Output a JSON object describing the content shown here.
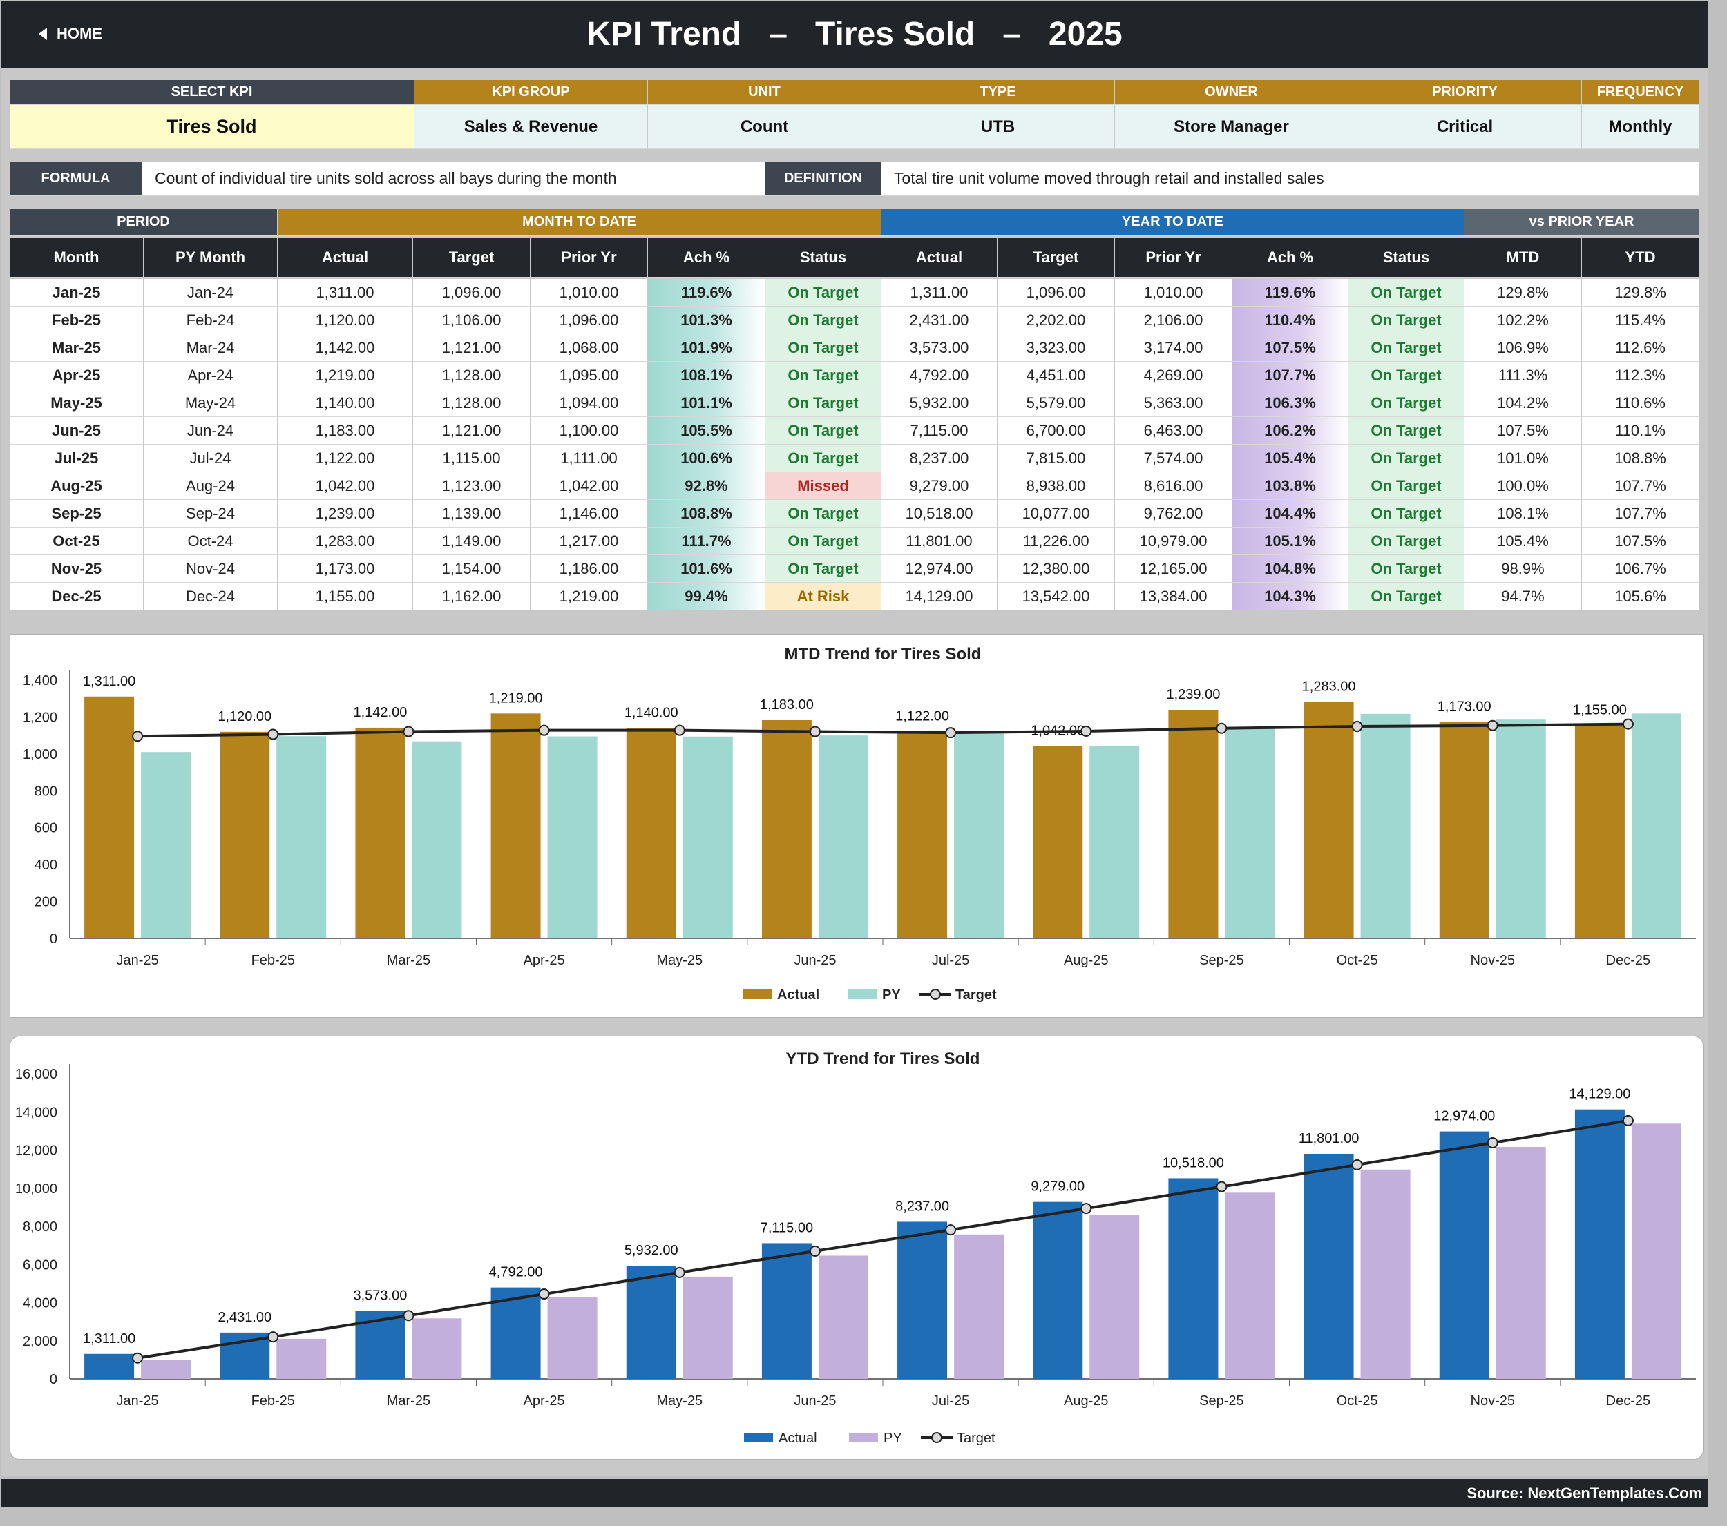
{
  "header": {
    "home_label": "HOME",
    "title": "KPI Trend   –   Tires Sold   –   2025"
  },
  "kpi_info": {
    "headers": [
      "SELECT KPI",
      "KPI GROUP",
      "UNIT",
      "TYPE",
      "OWNER",
      "PRIORITY",
      "FREQUENCY"
    ],
    "values": [
      "Tires Sold",
      "Sales & Revenue",
      "Count",
      "UTB",
      "Store Manager",
      "Critical",
      "Monthly"
    ]
  },
  "formula": {
    "label": "FORMULA",
    "text": "Count of individual tire units sold across all bays during the month",
    "definition_label": "DEFINITION",
    "definition_text": "Total tire unit volume moved through retail and installed sales"
  },
  "table": {
    "group_headers": [
      "PERIOD",
      "MONTH TO DATE",
      "YEAR TO DATE",
      "vs PRIOR YEAR"
    ],
    "columns": [
      "Month",
      "PY Month",
      "Actual",
      "Target",
      "Prior Yr",
      "Ach %",
      "Status",
      "Actual",
      "Target",
      "Prior Yr",
      "Ach %",
      "Status",
      "MTD",
      "YTD"
    ],
    "rows": [
      [
        "Jan-25",
        "Jan-24",
        "1,311.00",
        "1,096.00",
        "1,010.00",
        "119.6%",
        "On Target",
        "1,311.00",
        "1,096.00",
        "1,010.00",
        "119.6%",
        "On Target",
        "129.8%",
        "129.8%"
      ],
      [
        "Feb-25",
        "Feb-24",
        "1,120.00",
        "1,106.00",
        "1,096.00",
        "101.3%",
        "On Target",
        "2,431.00",
        "2,202.00",
        "2,106.00",
        "110.4%",
        "On Target",
        "102.2%",
        "115.4%"
      ],
      [
        "Mar-25",
        "Mar-24",
        "1,142.00",
        "1,121.00",
        "1,068.00",
        "101.9%",
        "On Target",
        "3,573.00",
        "3,323.00",
        "3,174.00",
        "107.5%",
        "On Target",
        "106.9%",
        "112.6%"
      ],
      [
        "Apr-25",
        "Apr-24",
        "1,219.00",
        "1,128.00",
        "1,095.00",
        "108.1%",
        "On Target",
        "4,792.00",
        "4,451.00",
        "4,269.00",
        "107.7%",
        "On Target",
        "111.3%",
        "112.3%"
      ],
      [
        "May-25",
        "May-24",
        "1,140.00",
        "1,128.00",
        "1,094.00",
        "101.1%",
        "On Target",
        "5,932.00",
        "5,579.00",
        "5,363.00",
        "106.3%",
        "On Target",
        "104.2%",
        "110.6%"
      ],
      [
        "Jun-25",
        "Jun-24",
        "1,183.00",
        "1,121.00",
        "1,100.00",
        "105.5%",
        "On Target",
        "7,115.00",
        "6,700.00",
        "6,463.00",
        "106.2%",
        "On Target",
        "107.5%",
        "110.1%"
      ],
      [
        "Jul-25",
        "Jul-24",
        "1,122.00",
        "1,115.00",
        "1,111.00",
        "100.6%",
        "On Target",
        "8,237.00",
        "7,815.00",
        "7,574.00",
        "105.4%",
        "On Target",
        "101.0%",
        "108.8%"
      ],
      [
        "Aug-25",
        "Aug-24",
        "1,042.00",
        "1,123.00",
        "1,042.00",
        "92.8%",
        "Missed",
        "9,279.00",
        "8,938.00",
        "8,616.00",
        "103.8%",
        "On Target",
        "100.0%",
        "107.7%"
      ],
      [
        "Sep-25",
        "Sep-24",
        "1,239.00",
        "1,139.00",
        "1,146.00",
        "108.8%",
        "On Target",
        "10,518.00",
        "10,077.00",
        "9,762.00",
        "104.4%",
        "On Target",
        "108.1%",
        "107.7%"
      ],
      [
        "Oct-25",
        "Oct-24",
        "1,283.00",
        "1,149.00",
        "1,217.00",
        "111.7%",
        "On Target",
        "11,801.00",
        "11,226.00",
        "10,979.00",
        "105.1%",
        "On Target",
        "105.4%",
        "107.5%"
      ],
      [
        "Nov-25",
        "Nov-24",
        "1,173.00",
        "1,154.00",
        "1,186.00",
        "101.6%",
        "On Target",
        "12,974.00",
        "12,380.00",
        "12,165.00",
        "104.8%",
        "On Target",
        "98.9%",
        "106.7%"
      ],
      [
        "Dec-25",
        "Dec-24",
        "1,155.00",
        "1,162.00",
        "1,219.00",
        "99.4%",
        "At Risk",
        "14,129.00",
        "13,542.00",
        "13,384.00",
        "104.3%",
        "On Target",
        "94.7%",
        "105.6%"
      ]
    ]
  },
  "chart_data": [
    {
      "type": "bar",
      "title": "MTD Trend for Tires Sold",
      "categories": [
        "Jan-25",
        "Feb-25",
        "Mar-25",
        "Apr-25",
        "May-25",
        "Jun-25",
        "Jul-25",
        "Aug-25",
        "Sep-25",
        "Oct-25",
        "Nov-25",
        "Dec-25"
      ],
      "series": [
        {
          "name": "Actual",
          "kind": "bar",
          "color": "#b5831b",
          "values": [
            1311,
            1120,
            1142,
            1219,
            1140,
            1183,
            1122,
            1042,
            1239,
            1283,
            1173,
            1155
          ]
        },
        {
          "name": "PY",
          "kind": "bar",
          "color": "#9fd8d1",
          "values": [
            1010,
            1096,
            1068,
            1095,
            1094,
            1100,
            1111,
            1042,
            1146,
            1217,
            1186,
            1219
          ]
        },
        {
          "name": "Target",
          "kind": "line",
          "color": "#222222",
          "values": [
            1096,
            1106,
            1121,
            1128,
            1128,
            1121,
            1115,
            1123,
            1139,
            1149,
            1154,
            1162
          ]
        }
      ],
      "data_labels": [
        "1,311.00",
        "1,120.00",
        "1,142.00",
        "1,219.00",
        "1,140.00",
        "1,183.00",
        "1,122.00",
        "1,042.00",
        "1,239.00",
        "1,283.00",
        "1,173.00",
        "1,155.00"
      ],
      "y_ticks": [
        "0",
        "200",
        "400",
        "600",
        "800",
        "1,000",
        "1,200",
        "1,400"
      ],
      "ylim": [
        0,
        1400
      ],
      "legend_position": "bottom"
    },
    {
      "type": "bar",
      "title": "YTD Trend for Tires Sold",
      "categories": [
        "Jan-25",
        "Feb-25",
        "Mar-25",
        "Apr-25",
        "May-25",
        "Jun-25",
        "Jul-25",
        "Aug-25",
        "Sep-25",
        "Oct-25",
        "Nov-25",
        "Dec-25"
      ],
      "series": [
        {
          "name": "Actual",
          "kind": "bar",
          "color": "#1f6db5",
          "values": [
            1311,
            2431,
            3573,
            4792,
            5932,
            7115,
            8237,
            9279,
            10518,
            11801,
            12974,
            14129
          ]
        },
        {
          "name": "PY",
          "kind": "bar",
          "color": "#c2afdc",
          "values": [
            1010,
            2106,
            3174,
            4269,
            5363,
            6463,
            7574,
            8616,
            9762,
            10979,
            12165,
            13384
          ]
        },
        {
          "name": "Target",
          "kind": "line",
          "color": "#222222",
          "values": [
            1096,
            2202,
            3323,
            4451,
            5579,
            6700,
            7815,
            8938,
            10077,
            11226,
            12380,
            13542
          ]
        }
      ],
      "data_labels": [
        "1,311.00",
        "2,431.00",
        "3,573.00",
        "4,792.00",
        "5,932.00",
        "7,115.00",
        "8,237.00",
        "9,279.00",
        "10,518.00",
        "11,801.00",
        "12,974.00",
        "14,129.00"
      ],
      "y_ticks": [
        "0",
        "2,000",
        "4,000",
        "6,000",
        "8,000",
        "10,000",
        "12,000",
        "14,000",
        "16,000"
      ],
      "ylim": [
        0,
        16000
      ],
      "legend_position": "bottom"
    }
  ],
  "footer": {
    "source": "Source: NextGenTemplates.Com"
  }
}
